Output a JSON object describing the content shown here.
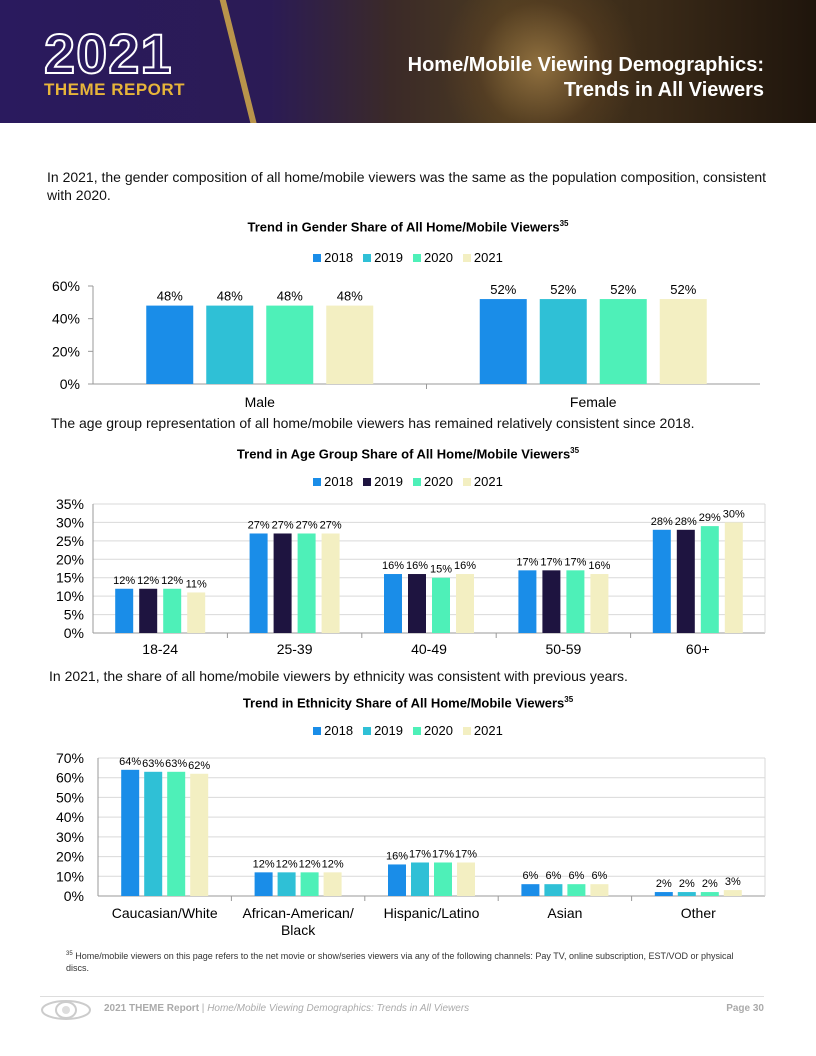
{
  "header": {
    "year": "2021",
    "report": "THEME REPORT",
    "title_line1": "Home/Mobile Viewing Demographics:",
    "title_line2": "Trends in All Viewers"
  },
  "paragraphs": {
    "gender": "In 2021, the gender composition of all home/mobile viewers was the same as the population composition, consistent with 2020.",
    "age": "The age group representation of all home/mobile viewers has remained relatively consistent since 2018.",
    "ethnicity": "In 2021, the share of all home/mobile viewers by ethnicity was consistent with previous years."
  },
  "colors": {
    "gender": [
      "#1a8de8",
      "#2fc0d6",
      "#4ef0b8",
      "#f3efc2"
    ],
    "age": [
      "#1a8de8",
      "#1e1440",
      "#4ef0b8",
      "#f3efc2"
    ],
    "ethnicity": [
      "#1a8de8",
      "#2fc0d6",
      "#4ef0b8",
      "#f3efc2"
    ]
  },
  "chart_data": [
    {
      "type": "bar",
      "title": "Trend in Gender Share of All Home/Mobile Viewers",
      "title_sup": "35",
      "categories": [
        "Male",
        "Female"
      ],
      "series": [
        {
          "name": "2018",
          "values": [
            48,
            52
          ],
          "labels": [
            "48%",
            "52%"
          ]
        },
        {
          "name": "2019",
          "values": [
            48,
            52
          ],
          "labels": [
            "48%",
            "52%"
          ]
        },
        {
          "name": "2020",
          "values": [
            48,
            52
          ],
          "labels": [
            "48%",
            "52%"
          ]
        },
        {
          "name": "2021",
          "values": [
            48,
            52
          ],
          "labels": [
            "48%",
            "52%"
          ]
        }
      ],
      "yticks": [
        "0%",
        "20%",
        "40%",
        "60%"
      ],
      "ylim": [
        0,
        60
      ],
      "legend": "top-center",
      "grid": false
    },
    {
      "type": "bar",
      "title": "Trend in Age Group Share of All Home/Mobile Viewers",
      "title_sup": "35",
      "categories": [
        "18-24",
        "25-39",
        "40-49",
        "50-59",
        "60+"
      ],
      "series": [
        {
          "name": "2018",
          "values": [
            12,
            27,
            16,
            17,
            28
          ],
          "labels": [
            "12%",
            "27%",
            "16%",
            "17%",
            "28%"
          ]
        },
        {
          "name": "2019",
          "values": [
            12,
            27,
            16,
            17,
            28
          ],
          "labels": [
            "12%",
            "27%",
            "16%",
            "17%",
            "28%"
          ]
        },
        {
          "name": "2020",
          "values": [
            12,
            27,
            15,
            17,
            29
          ],
          "labels": [
            "12%",
            "27%",
            "15%",
            "17%",
            "29%"
          ]
        },
        {
          "name": "2021",
          "values": [
            11,
            27,
            16,
            16,
            30
          ],
          "labels": [
            "11%",
            "27%",
            "16%",
            "16%",
            "30%"
          ]
        }
      ],
      "yticks": [
        "0%",
        "5%",
        "10%",
        "15%",
        "20%",
        "25%",
        "30%",
        "35%"
      ],
      "ylim": [
        0,
        35
      ],
      "legend": "top-center",
      "grid": true
    },
    {
      "type": "bar",
      "title": "Trend in Ethnicity Share of All Home/Mobile Viewers",
      "title_sup": "35",
      "categories": [
        "Caucasian/White",
        "African-American/ Black",
        "Hispanic/Latino",
        "Asian",
        "Other"
      ],
      "series": [
        {
          "name": "2018",
          "values": [
            64,
            12,
            16,
            6,
            2
          ],
          "labels": [
            "64%",
            "12%",
            "16%",
            "6%",
            "2%"
          ]
        },
        {
          "name": "2019",
          "values": [
            63,
            12,
            17,
            6,
            2
          ],
          "labels": [
            "63%",
            "12%",
            "17%",
            "6%",
            "2%"
          ]
        },
        {
          "name": "2020",
          "values": [
            63,
            12,
            17,
            6,
            2
          ],
          "labels": [
            "63%",
            "12%",
            "17%",
            "6%",
            "2%"
          ]
        },
        {
          "name": "2021",
          "values": [
            62,
            12,
            17,
            6,
            3
          ],
          "labels": [
            "62%",
            "12%",
            "17%",
            "6%",
            "3%"
          ]
        }
      ],
      "yticks": [
        "0%",
        "10%",
        "20%",
        "30%",
        "40%",
        "50%",
        "60%",
        "70%"
      ],
      "ylim": [
        0,
        70
      ],
      "legend": "top-center",
      "grid": true
    }
  ],
  "footnote": {
    "sup": "35",
    "text": "Home/mobile viewers on this page refers to the net movie or show/series viewers via any of the following channels: Pay TV, online subscription, EST/VOD or physical discs."
  },
  "footer": {
    "report": "2021 THEME Report",
    "separator": " | ",
    "section": "Home/Mobile Viewing Demographics: Trends in All Viewers",
    "page": "Page 30"
  }
}
